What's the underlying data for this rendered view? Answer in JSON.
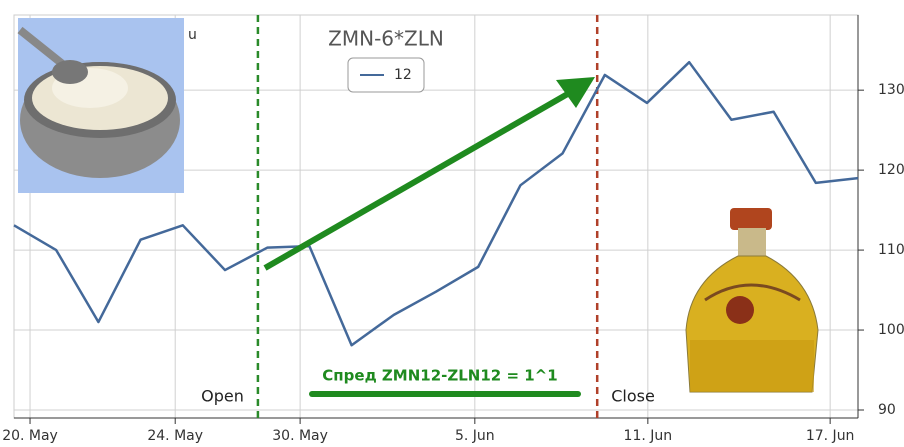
{
  "chart_data": {
    "type": "line",
    "title": "ZMN-6*ZLN",
    "partial_text": "u",
    "x": [
      0,
      1,
      2,
      3,
      4,
      5,
      6,
      7,
      8,
      9,
      10,
      11,
      12,
      13,
      14,
      15,
      16,
      17,
      18,
      19,
      20
    ],
    "series": [
      {
        "name": "12",
        "color": "#44699a",
        "values": [
          113.1,
          110,
          101,
          111.3,
          113.1,
          107.5,
          110.3,
          110.5,
          98.1,
          101.9,
          104.8,
          107.9,
          118.1,
          122.1,
          131.9,
          128.4,
          133.5,
          126.3,
          127.3,
          118.4,
          119
        ]
      }
    ],
    "xlim": [
      0,
      20
    ],
    "xticks": [
      {
        "value": 0.38,
        "label": "20. May"
      },
      {
        "value": 3.82,
        "label": "24. May"
      },
      {
        "value": 6.78,
        "label": "30. May"
      },
      {
        "value": 10.92,
        "label": "5. Jun"
      },
      {
        "value": 15.02,
        "label": "11. Jun"
      },
      {
        "value": 19.34,
        "label": "17. Jun"
      }
    ],
    "ylim": [
      89,
      139.4
    ],
    "yticks": [
      90,
      100,
      110,
      120,
      130
    ],
    "grid": true,
    "events": [
      {
        "x": 5.78,
        "label": "Open",
        "color": "#2a8a2a"
      },
      {
        "x": 13.82,
        "label": "Close",
        "color": "#b0402a"
      }
    ],
    "annotation": "Спред ZMN12-ZLN12 = 1^1"
  }
}
